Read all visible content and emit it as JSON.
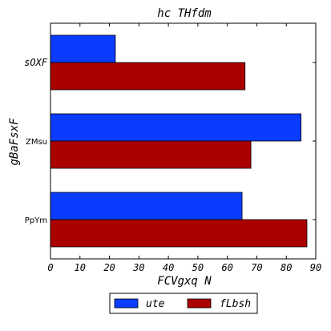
{
  "chart_data": {
    "type": "bar",
    "orientation": "horizontal",
    "title": "hc THfdm",
    "xlabel": "FCVgxq  N",
    "ylabel": "gBaFsxF",
    "categories": [
      "PpYm",
      "ZMsu",
      "sOXF"
    ],
    "series": [
      {
        "name": "ute",
        "color": "#0a3cff",
        "values": [
          65,
          85,
          22
        ]
      },
      {
        "name": "fLbsh",
        "color": "#aa0000",
        "values": [
          87,
          68,
          66
        ]
      }
    ],
    "xlim": [
      0,
      90
    ],
    "xticks": [
      0,
      10,
      20,
      30,
      40,
      50,
      60,
      70,
      80,
      90
    ],
    "grid": false,
    "legend_position": "bottom-center"
  }
}
